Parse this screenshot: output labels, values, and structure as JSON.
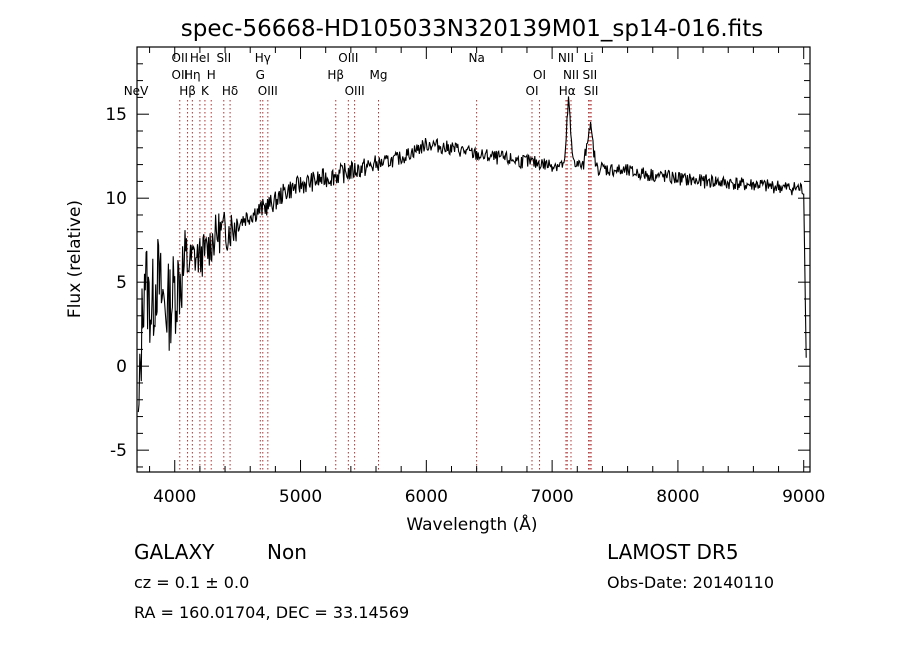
{
  "chart_data": {
    "type": "line",
    "title": "spec-56668-HD105033N320139M01_sp14-016.fits",
    "xlabel": "Wavelength (Å)",
    "ylabel": "Flux (relative)",
    "xlim": [
      3700,
      9050
    ],
    "ylim": [
      -6.3,
      19.0
    ],
    "xticks": [
      4000,
      5000,
      6000,
      7000,
      8000,
      9000
    ],
    "yticks": [
      -5,
      0,
      5,
      10,
      15
    ],
    "grid": false,
    "line_color": "#000000",
    "marker_color": "#b03030",
    "series": [
      {
        "x": [
          3710,
          3740,
          3760,
          3790,
          3820,
          3860,
          3900,
          3950,
          4000,
          4050,
          4100,
          4150,
          4200,
          4250,
          4300,
          4350,
          4400,
          4450,
          4500,
          4550,
          4600,
          4650,
          4700,
          4750,
          4800,
          4850,
          4900,
          4950,
          5000,
          5050,
          5100,
          5150,
          5200,
          5250,
          5300,
          5350,
          5400,
          5450,
          5500,
          5550,
          5600,
          5650,
          5700,
          5750,
          5800,
          5850,
          5900,
          5950,
          6000,
          6050,
          6100,
          6150,
          6200,
          6250,
          6300,
          6350,
          6400,
          6450,
          6500,
          6550,
          6600,
          6650,
          6700,
          6750,
          6800,
          6850,
          6900,
          6950,
          7000,
          7050,
          7100,
          7130,
          7160,
          7200,
          7250,
          7300,
          7350,
          7400,
          7450,
          7500,
          7550,
          7600,
          7650,
          7700,
          7750,
          7800,
          7850,
          7900,
          7950,
          8000,
          8050,
          8100,
          8150,
          8200,
          8250,
          8300,
          8350,
          8400,
          8450,
          8500,
          8550,
          8600,
          8650,
          8700,
          8750,
          8800,
          8850,
          8900,
          8950,
          9000,
          9020
        ],
        "y": [
          -4.0,
          2.5,
          6.0,
          4.0,
          3.5,
          5.5,
          4.0,
          3.5,
          4.5,
          5.5,
          6.0,
          6.5,
          6.5,
          6.8,
          7.5,
          8.0,
          8.0,
          8.3,
          8.5,
          8.8,
          9.0,
          9.2,
          9.4,
          9.6,
          9.8,
          10.2,
          10.5,
          10.6,
          10.8,
          10.9,
          11.0,
          11.1,
          11.2,
          11.3,
          11.4,
          11.5,
          11.6,
          11.7,
          11.8,
          11.9,
          12.0,
          12.1,
          12.2,
          12.3,
          12.4,
          12.6,
          12.8,
          13.0,
          13.2,
          13.2,
          13.1,
          13.0,
          13.0,
          12.9,
          12.8,
          12.7,
          12.6,
          12.5,
          12.5,
          12.4,
          12.4,
          12.3,
          12.3,
          12.2,
          12.2,
          12.1,
          12.1,
          12.0,
          12.0,
          12.0,
          12.0,
          16.0,
          12.5,
          12.0,
          11.9,
          14.5,
          11.8,
          11.8,
          11.7,
          11.7,
          11.6,
          11.6,
          11.5,
          11.5,
          11.4,
          11.4,
          11.3,
          11.3,
          11.2,
          11.2,
          11.1,
          11.1,
          11.0,
          11.0,
          11.0,
          11.0,
          10.9,
          10.9,
          10.9,
          10.8,
          10.8,
          10.8,
          10.8,
          10.7,
          10.7,
          10.7,
          10.6,
          10.6,
          10.6,
          10.5,
          0.5
        ]
      }
    ],
    "line_markers": [
      {
        "label": "NeV",
        "x": 3426,
        "row": 2
      },
      {
        "label": "OII",
        "x": 4040,
        "row": 0
      },
      {
        "label": "OII",
        "x": 4040,
        "row": 1
      },
      {
        "label": "Hβ",
        "x": 4102,
        "row": 2
      },
      {
        "label": "Hη",
        "x": 4140,
        "row": 1
      },
      {
        "label": "HeI",
        "x": 4200,
        "row": 0
      },
      {
        "label": "K",
        "x": 4240,
        "row": 2
      },
      {
        "label": "H",
        "x": 4290,
        "row": 1
      },
      {
        "label": "SII",
        "x": 4390,
        "row": 0
      },
      {
        "label": "Hδ",
        "x": 4440,
        "row": 2
      },
      {
        "label": "Hγ",
        "x": 4700,
        "row": 0
      },
      {
        "label": "G",
        "x": 4680,
        "row": 1
      },
      {
        "label": "OIII",
        "x": 4740,
        "row": 2
      },
      {
        "label": "OIII",
        "x": 5380,
        "row": 0
      },
      {
        "label": "Hβ",
        "x": 5280,
        "row": 1
      },
      {
        "label": "OIII",
        "x": 5430,
        "row": 2
      },
      {
        "label": "Mg",
        "x": 5620,
        "row": 1
      },
      {
        "label": "Na",
        "x": 6400,
        "row": 0
      },
      {
        "label": "OI",
        "x": 6900,
        "row": 1
      },
      {
        "label": "OI",
        "x": 6840,
        "row": 2
      },
      {
        "label": "NII",
        "x": 7110,
        "row": 0
      },
      {
        "label": "NII",
        "x": 7150,
        "row": 1
      },
      {
        "label": "Hα",
        "x": 7120,
        "row": 2
      },
      {
        "label": "Li",
        "x": 7290,
        "row": 0
      },
      {
        "label": "SII",
        "x": 7300,
        "row": 1
      },
      {
        "label": "SII",
        "x": 7310,
        "row": 2
      }
    ],
    "line_positions": [
      4040,
      4102,
      4140,
      4200,
      4240,
      4290,
      4390,
      4440,
      4680,
      4700,
      4740,
      5280,
      5380,
      5430,
      5620,
      6400,
      6840,
      6900,
      7110,
      7120,
      7150,
      7290,
      7300,
      7310
    ]
  },
  "info": {
    "class": "GALAXY",
    "subclass": "Non",
    "cz": "cz = 0.1 ± 0.0",
    "coords": "RA = 160.01704, DEC =  33.14569",
    "survey": "LAMOST DR5",
    "obsdate": "Obs-Date: 20140110"
  }
}
